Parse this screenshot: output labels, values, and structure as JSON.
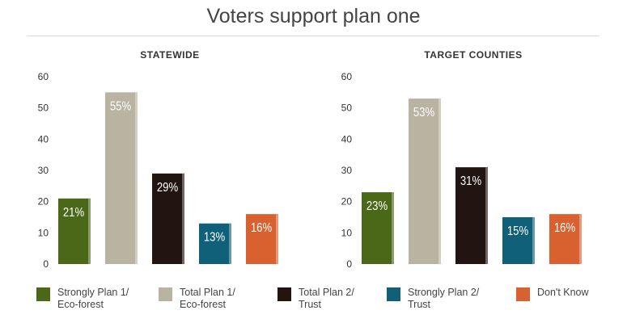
{
  "title": "Voters support plan one",
  "legend": [
    {
      "label": "Strongly Plan 1/\nEco-forest",
      "color": "#4b6818"
    },
    {
      "label": "Total Plan 1/\nEco-forest",
      "color": "#b9b3a1"
    },
    {
      "label": "Total Plan 2/\nTrust",
      "color": "#221410"
    },
    {
      "label": "Strongly Plan 2/\nTrust",
      "color": "#10607a"
    },
    {
      "label": "Don't Know",
      "color": "#d9612f"
    }
  ],
  "chart_data": [
    {
      "type": "bar",
      "title": "STATEWIDE",
      "categories": [
        "Strongly Plan 1/ Eco-forest",
        "Total Plan 1/ Eco-forest",
        "Total Plan 2/ Trust",
        "Strongly Plan 2/ Trust",
        "Don't Know"
      ],
      "values": [
        21,
        55,
        29,
        13,
        16
      ],
      "data_labels": [
        "21%",
        "55%",
        "29%",
        "13%",
        "16%"
      ],
      "ylim": [
        0,
        60
      ],
      "yticks": [
        0,
        10,
        20,
        30,
        40,
        50,
        60
      ],
      "colors": [
        "#4b6818",
        "#b9b3a1",
        "#221410",
        "#10607a",
        "#d9612f"
      ],
      "grid": false,
      "legend_position": "bottom"
    },
    {
      "type": "bar",
      "title": "TARGET COUNTIES",
      "categories": [
        "Strongly Plan 1/ Eco-forest",
        "Total Plan 1/ Eco-forest",
        "Total Plan 2/ Trust",
        "Strongly Plan 2/ Trust",
        "Don't Know"
      ],
      "values": [
        23,
        53,
        31,
        15,
        16
      ],
      "data_labels": [
        "23%",
        "53%",
        "31%",
        "15%",
        "16%"
      ],
      "ylim": [
        0,
        60
      ],
      "yticks": [
        0,
        10,
        20,
        30,
        40,
        50,
        60
      ],
      "colors": [
        "#4b6818",
        "#b9b3a1",
        "#221410",
        "#10607a",
        "#d9612f"
      ],
      "grid": false,
      "legend_position": "bottom"
    }
  ]
}
